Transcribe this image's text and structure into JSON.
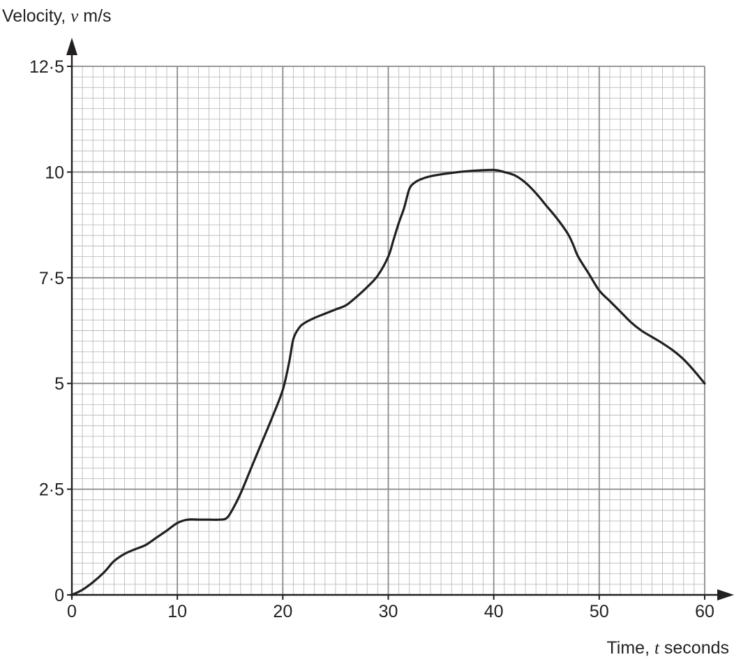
{
  "chart_data": {
    "type": "line",
    "ylabel": {
      "prefix": "Velocity, ",
      "var": "v",
      "suffix": " m/s"
    },
    "xlabel": {
      "prefix": "Time, ",
      "var": "t",
      "suffix": " seconds"
    },
    "xlim": [
      0,
      60
    ],
    "ylim": [
      0,
      12.5
    ],
    "x_major_step": 10,
    "x_minor_step": 1,
    "y_major_step": 2.5,
    "y_minor_step": 0.25,
    "grid": true,
    "x_ticks": [
      {
        "value": 0,
        "label": "0"
      },
      {
        "value": 10,
        "label": "10"
      },
      {
        "value": 20,
        "label": "20"
      },
      {
        "value": 30,
        "label": "30"
      },
      {
        "value": 40,
        "label": "40"
      },
      {
        "value": 50,
        "label": "50"
      },
      {
        "value": 60,
        "label": "60"
      }
    ],
    "y_ticks": [
      {
        "value": 0,
        "label": "0"
      },
      {
        "value": 2.5,
        "label": "2·5"
      },
      {
        "value": 5,
        "label": "5"
      },
      {
        "value": 7.5,
        "label": "7·5"
      },
      {
        "value": 10,
        "label": "10"
      },
      {
        "value": 12.5,
        "label": "12·5"
      }
    ],
    "series": [
      {
        "x": [
          0,
          1,
          2,
          3,
          3.5,
          4,
          5,
          6,
          7,
          8,
          9,
          10,
          11,
          12,
          13,
          14,
          14.7,
          15.3,
          16,
          17,
          18,
          19,
          20,
          20.6,
          21,
          21.5,
          22,
          23,
          24,
          25,
          26,
          27,
          28,
          29,
          30,
          30.5,
          31,
          31.5,
          32,
          32.5,
          33,
          34,
          36,
          38,
          40,
          41,
          42,
          43,
          44,
          45,
          46,
          47,
          47.5,
          48,
          49,
          50,
          51,
          52,
          53,
          54,
          55,
          56,
          57,
          58,
          59,
          60
        ],
        "y": [
          0,
          0.12,
          0.3,
          0.52,
          0.66,
          0.8,
          0.97,
          1.08,
          1.18,
          1.35,
          1.52,
          1.7,
          1.78,
          1.78,
          1.78,
          1.78,
          1.82,
          2.05,
          2.4,
          3.0,
          3.6,
          4.2,
          4.85,
          5.5,
          6.05,
          6.3,
          6.42,
          6.55,
          6.65,
          6.75,
          6.85,
          7.05,
          7.28,
          7.55,
          8.0,
          8.4,
          8.8,
          9.15,
          9.6,
          9.75,
          9.82,
          9.9,
          9.98,
          10.03,
          10.05,
          10.0,
          9.92,
          9.75,
          9.5,
          9.2,
          8.9,
          8.55,
          8.3,
          8.0,
          7.6,
          7.2,
          6.95,
          6.7,
          6.45,
          6.25,
          6.1,
          5.95,
          5.78,
          5.57,
          5.3,
          5.0
        ]
      }
    ]
  }
}
